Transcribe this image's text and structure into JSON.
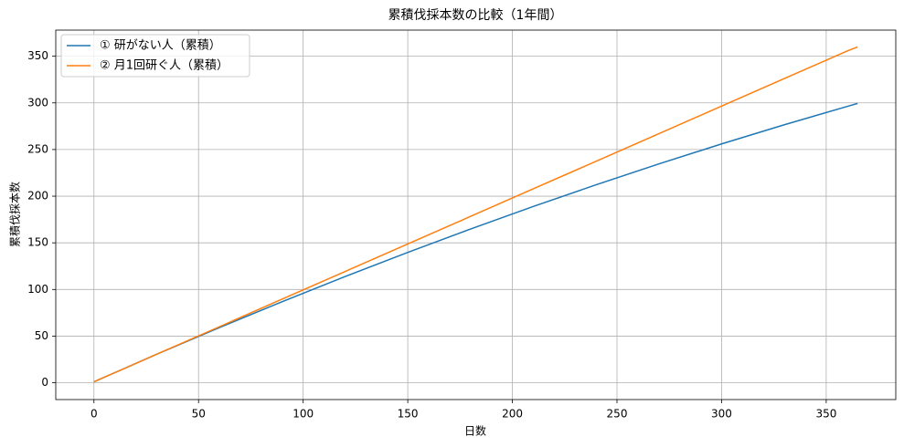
{
  "chart_data": {
    "type": "line",
    "title": "累積伐採本数の比較（1年間）",
    "x_label": "日数",
    "y_label": "累積伐採本数",
    "x": [
      0,
      30,
      60,
      90,
      120,
      150,
      180,
      210,
      240,
      270,
      300,
      330,
      360,
      365
    ],
    "series": [
      {
        "name": "① 研がない人（累積）",
        "color": "#1f77b4",
        "values": [
          1,
          30.55,
          59.2,
          86.95,
          113.8,
          139.75,
          164.8,
          188.95,
          212.2,
          234.55,
          256,
          276.55,
          296.2,
          299.4
        ]
      },
      {
        "name": "② 月1回研ぐ人（累積）",
        "color": "#ff7f0e",
        "values": [
          1,
          30.6,
          60.1,
          89.7,
          119.2,
          148.8,
          178.3,
          207.9,
          237.4,
          267,
          296.5,
          326.1,
          355.6,
          360
        ]
      }
    ],
    "xlim": [
      -18.25,
      383.25
    ],
    "ylim": [
      -18,
      378
    ],
    "xticks": [
      0,
      50,
      100,
      150,
      200,
      250,
      300,
      350
    ],
    "yticks": [
      0,
      50,
      100,
      150,
      200,
      250,
      300,
      350
    ],
    "grid": true,
    "legend": "upper left"
  }
}
